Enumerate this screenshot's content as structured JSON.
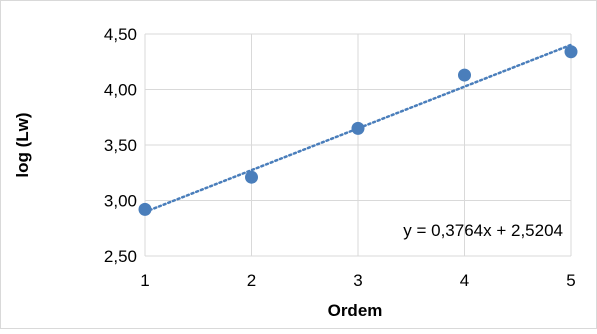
{
  "chart_data": {
    "type": "scatter",
    "title": "",
    "xlabel": "Ordem",
    "ylabel": "log (Lw)",
    "xlim": [
      1,
      5
    ],
    "ylim": [
      2.5,
      4.5
    ],
    "x_ticks": [
      "1",
      "2",
      "3",
      "4",
      "5"
    ],
    "y_ticks": [
      "2,50",
      "3,00",
      "3,50",
      "4,00",
      "4,50"
    ],
    "grid": true,
    "legend": "none",
    "series": [
      {
        "x": [
          1,
          2,
          3,
          4,
          5
        ],
        "y": [
          2.92,
          3.21,
          3.65,
          4.13,
          4.34
        ],
        "color": "#4a7ebb"
      }
    ],
    "trendline": {
      "type": "linear",
      "slope": 0.3764,
      "intercept": 2.5204,
      "style": "dotted",
      "color": "#4a7ebb",
      "equation_label": "y = 0,3764x + 2,5204"
    }
  }
}
